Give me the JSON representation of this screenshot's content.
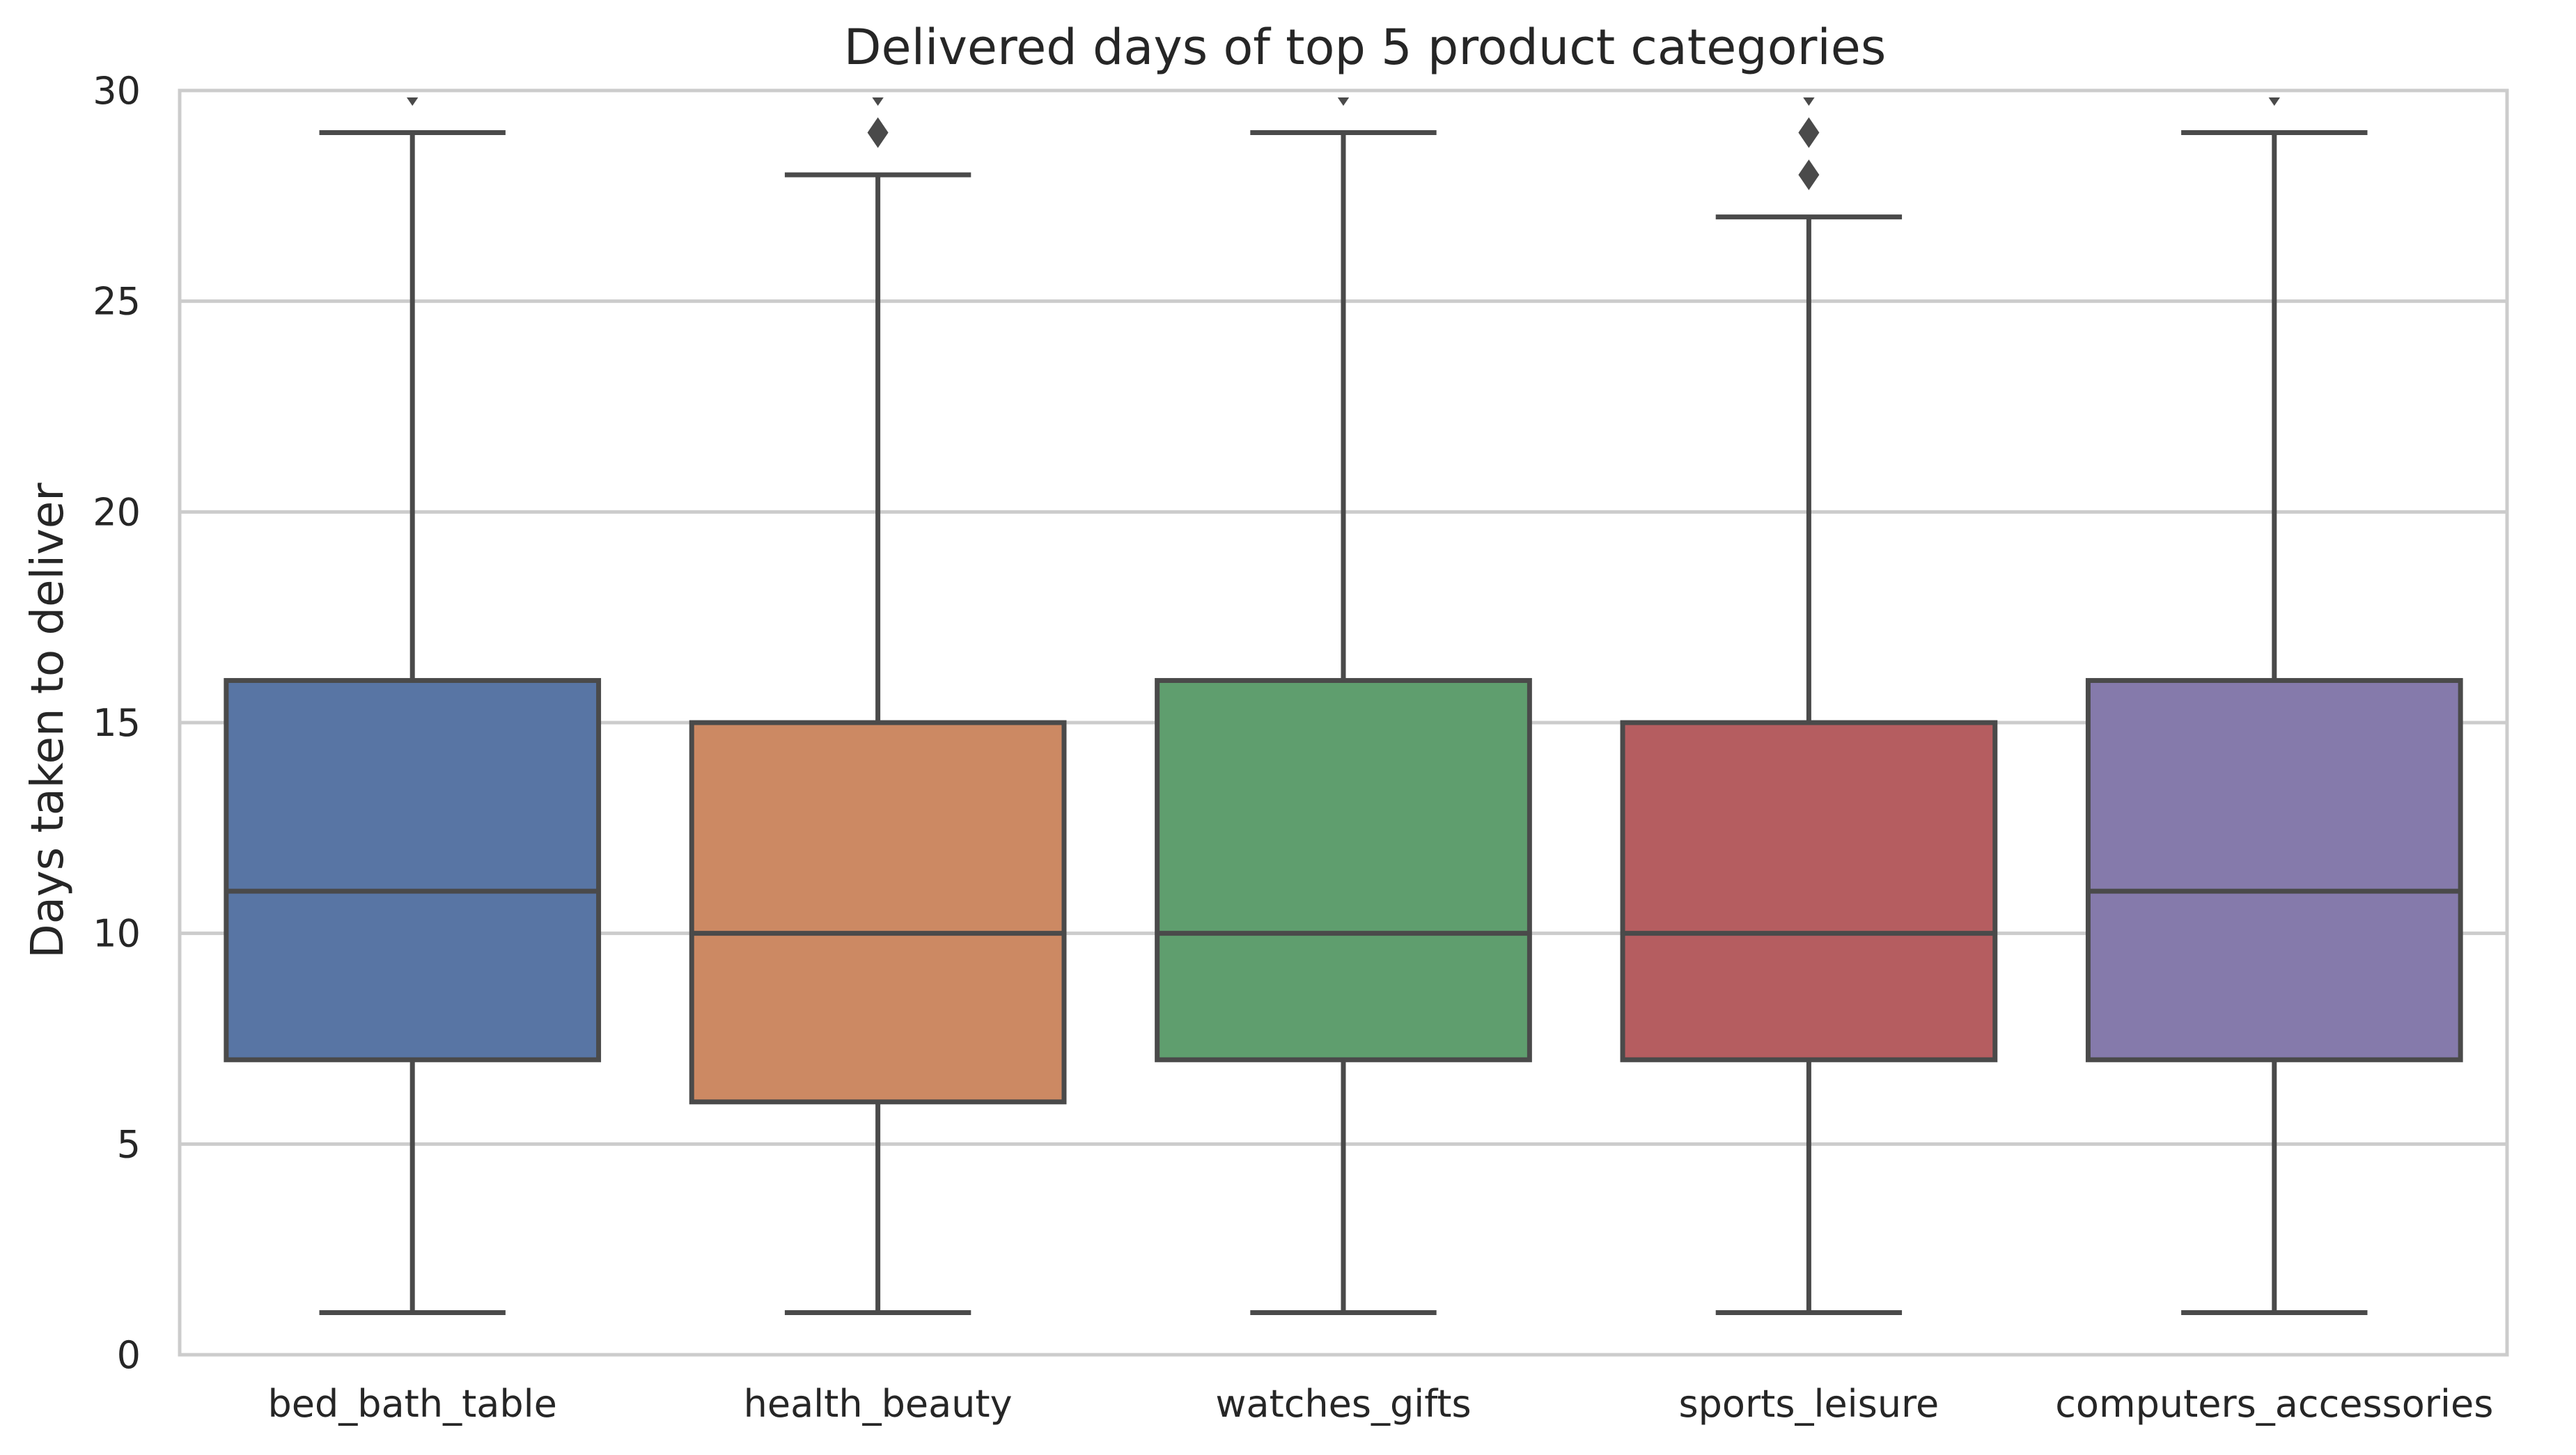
{
  "chart_data": {
    "type": "box",
    "title": "Delivered days of top 5 product categories",
    "xlabel": "",
    "ylabel": "Days taken to deliver",
    "ylim": [
      0,
      30
    ],
    "yticks": [
      0,
      5,
      10,
      15,
      20,
      25,
      30
    ],
    "grid": "horizontal",
    "legend": "none",
    "categories": [
      "bed_bath_table",
      "health_beauty",
      "watches_gifts",
      "sports_leisure",
      "computers_accessories"
    ],
    "boxes": [
      {
        "category": "bed_bath_table",
        "whisker_low": 1,
        "q1": 7,
        "median": 11,
        "q3": 16,
        "whisker_high": 29,
        "outliers": [
          30
        ],
        "color": "#5875a4"
      },
      {
        "category": "health_beauty",
        "whisker_low": 1,
        "q1": 6,
        "median": 10,
        "q3": 15,
        "whisker_high": 28,
        "outliers": [
          29,
          30
        ],
        "color": "#cc8963"
      },
      {
        "category": "watches_gifts",
        "whisker_low": 1,
        "q1": 7,
        "median": 10,
        "q3": 16,
        "whisker_high": 29,
        "outliers": [
          30
        ],
        "color": "#5f9e6e"
      },
      {
        "category": "sports_leisure",
        "whisker_low": 1,
        "q1": 7,
        "median": 10,
        "q3": 15,
        "whisker_high": 27,
        "outliers": [
          28,
          29,
          30
        ],
        "color": "#b55d60"
      },
      {
        "category": "computers_accessories",
        "whisker_low": 1,
        "q1": 7,
        "median": 11,
        "q3": 16,
        "whisker_high": 29,
        "outliers": [
          30
        ],
        "color": "#857aab"
      }
    ]
  }
}
